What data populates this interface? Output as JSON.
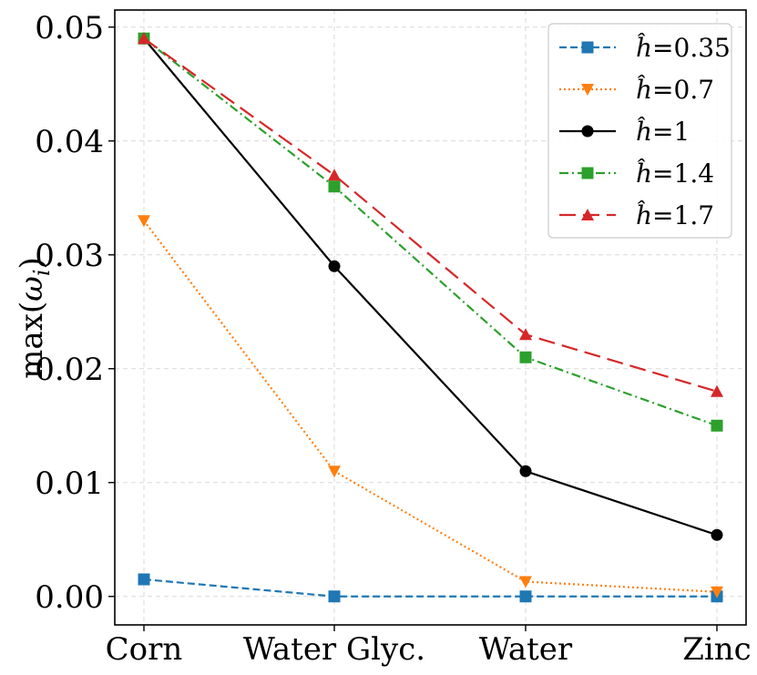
{
  "chart_data": {
    "type": "line",
    "title": "",
    "xlabel": "",
    "ylabel": "max(ωi)",
    "ylabel_main": "max(",
    "ylabel_symbol": "ω",
    "ylabel_sub": "i",
    "ylabel_close": ")",
    "categories": [
      "Corn",
      "Water Glyc.",
      "Water",
      "Zinc"
    ],
    "ylim": [
      -0.0025,
      0.0515
    ],
    "yticks": [
      0.0,
      0.01,
      0.02,
      0.03,
      0.04,
      0.05
    ],
    "ytick_labels": [
      "0.00",
      "0.01",
      "0.02",
      "0.03",
      "0.04",
      "0.05"
    ],
    "grid": true,
    "legend_position": "top-right",
    "series": [
      {
        "name": "ĥ=0.35",
        "label_prefix": "ĥ=",
        "label_value": "0.35",
        "color": "#1f77b4",
        "marker": "square",
        "dash": "dashed",
        "values": [
          0.0015,
          0.0,
          0.0,
          0.0
        ]
      },
      {
        "name": "ĥ=0.7",
        "label_prefix": "ĥ=",
        "label_value": "0.7",
        "color": "#ff7f0e",
        "marker": "triangle-down",
        "dash": "dotted",
        "values": [
          0.033,
          0.011,
          0.0013,
          0.0004
        ]
      },
      {
        "name": "ĥ=1",
        "label_prefix": "ĥ=",
        "label_value": "1",
        "color": "#000000",
        "marker": "circle",
        "dash": "solid",
        "values": [
          0.049,
          0.029,
          0.011,
          0.0054
        ]
      },
      {
        "name": "ĥ=1.4",
        "label_prefix": "ĥ=",
        "label_value": "1.4",
        "color": "#2ca02c",
        "marker": "square",
        "dash": "dashdot",
        "values": [
          0.049,
          0.036,
          0.021,
          0.015
        ]
      },
      {
        "name": "ĥ=1.7",
        "label_prefix": "ĥ=",
        "label_value": "1.7",
        "color": "#d62728",
        "marker": "triangle-up",
        "dash": "longdash",
        "values": [
          0.049,
          0.037,
          0.023,
          0.018
        ]
      }
    ]
  }
}
